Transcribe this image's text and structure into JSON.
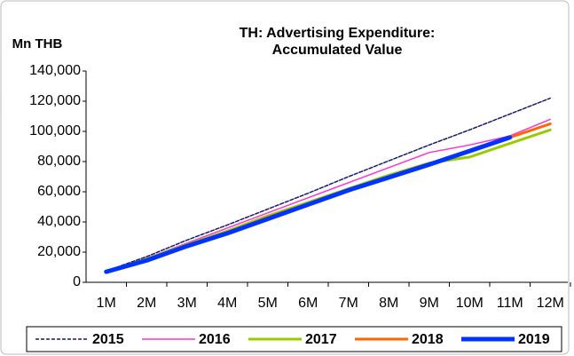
{
  "chart_data": {
    "type": "line",
    "title": [
      "TH: Advertising Expenditure:",
      "Accumulated Value"
    ],
    "y_label": "Mn THB",
    "categories": [
      "1M",
      "2M",
      "3M",
      "4M",
      "5M",
      "6M",
      "7M",
      "8M",
      "9M",
      "10M",
      "11M",
      "12M"
    ],
    "ylim": [
      0,
      140000
    ],
    "yticks": [
      0,
      {
        "value": 20000,
        "label": "20,000"
      },
      {
        "value": 40000,
        "label": "40,000"
      },
      {
        "value": 60000,
        "label": "60,000"
      },
      {
        "value": 80000,
        "label": "80,000"
      },
      {
        "value": 100000,
        "label": "100,000"
      },
      {
        "value": 120000,
        "label": "120,000"
      },
      {
        "value": 140000,
        "label": "140,000"
      }
    ],
    "grid": false,
    "legend": "bottom",
    "series": [
      {
        "name": "2015",
        "color": "#1a1a6e",
        "dashed": true,
        "width": 1.5,
        "values": [
          7500,
          17000,
          28000,
          38000,
          48500,
          59000,
          70000,
          80500,
          91000,
          101000,
          111500,
          122000
        ]
      },
      {
        "name": "2016",
        "color": "#ff33cc",
        "width": 1.5,
        "values": [
          7000,
          16000,
          26000,
          36000,
          46000,
          56000,
          66000,
          76000,
          86000,
          91000,
          97000,
          108000
        ]
      },
      {
        "name": "2017",
        "color": "#99cc00",
        "width": 3,
        "values": [
          7000,
          15500,
          25000,
          34000,
          44000,
          53000,
          62000,
          71000,
          79000,
          83000,
          92000,
          101000
        ]
      },
      {
        "name": "2018",
        "color": "#ff6600",
        "width": 3,
        "values": [
          7000,
          15000,
          24500,
          33000,
          43000,
          52000,
          61000,
          70000,
          78000,
          86500,
          96000,
          105000
        ]
      },
      {
        "name": "2019",
        "color": "#0033ff",
        "width": 5,
        "values": [
          7000,
          14500,
          24000,
          32500,
          42000,
          51500,
          61000,
          69500,
          78000,
          87000,
          96000,
          null
        ]
      }
    ]
  }
}
